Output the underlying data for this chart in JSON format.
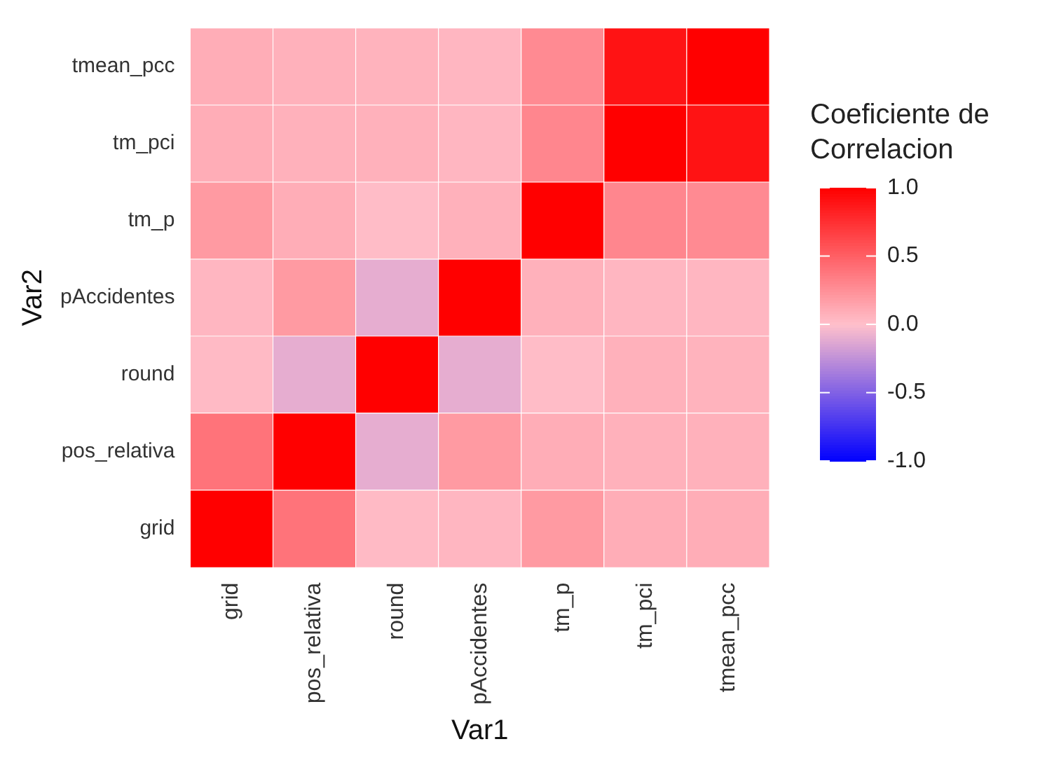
{
  "chart_data": {
    "type": "heatmap",
    "xlabel": "Var1",
    "ylabel": "Var2",
    "clabel": "Coeficiente de Correlacion",
    "categories": [
      "grid",
      "pos_relativa",
      "round",
      "pAccidentes",
      "tm_p",
      "tm_pci",
      "tmean_pcc"
    ],
    "y_categories": [
      "tmean_pcc",
      "tm_pci",
      "tm_p",
      "pAccidentes",
      "round",
      "pos_relativa",
      "grid"
    ],
    "cells": [
      [
        0.1,
        0.08,
        0.07,
        0.05,
        0.28,
        0.9,
        1
      ],
      [
        0.1,
        0.08,
        0.08,
        0.05,
        0.3,
        1,
        0.9
      ],
      [
        0.2,
        0.1,
        0.02,
        0.08,
        1,
        0.3,
        0.28
      ],
      [
        0.05,
        0.2,
        -0.1,
        1,
        0.08,
        0.05,
        0.05
      ],
      [
        0.03,
        -0.1,
        1,
        -0.1,
        0.02,
        0.08,
        0.07
      ],
      [
        0.4,
        1,
        -0.1,
        0.2,
        0.1,
        0.08,
        0.08
      ],
      [
        1,
        0.4,
        0.03,
        0.05,
        0.2,
        0.1,
        0.1
      ]
    ],
    "colors": [
      "#0000ff",
      "#ffc0cb",
      "#ff0000"
    ],
    "clim": [
      -1,
      1
    ],
    "cticks": [
      {
        "value": -1,
        "label": "-1.0"
      },
      {
        "value": -0.5,
        "label": "-0.5"
      },
      {
        "value": 0,
        "label": "0.0"
      },
      {
        "value": 0.5,
        "label": "0.5"
      },
      {
        "value": 1,
        "label": "1.0"
      }
    ]
  }
}
